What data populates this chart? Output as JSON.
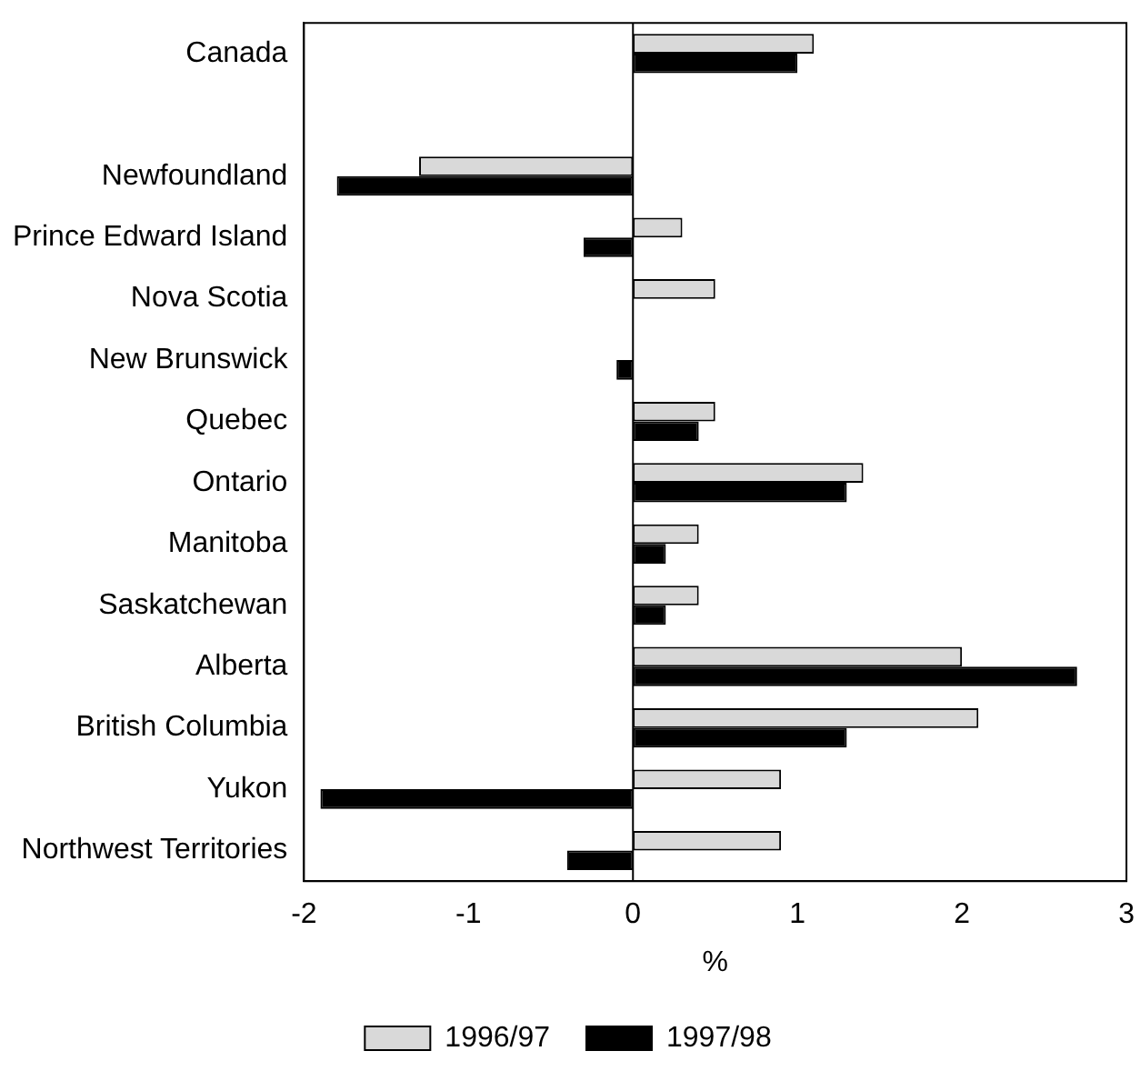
{
  "chart_data": {
    "type": "bar",
    "orientation": "horizontal",
    "xlabel": "%",
    "categories": [
      "Canada",
      null,
      "Newfoundland",
      "Prince Edward Island",
      "Nova Scotia",
      "New Brunswick",
      "Quebec",
      "Ontario",
      "Manitoba",
      "Saskatchewan",
      "Alberta",
      "British Columbia",
      "Yukon",
      "Northwest Territories"
    ],
    "series": [
      {
        "name": "1996/97",
        "color": "#d9d9d9",
        "values": [
          1.1,
          null,
          -1.3,
          0.3,
          0.5,
          0,
          0.5,
          1.4,
          0.4,
          0.4,
          2.0,
          2.1,
          0.9,
          0.9
        ]
      },
      {
        "name": "1997/98",
        "color": "#000000",
        "values": [
          1.0,
          null,
          -1.8,
          -0.3,
          0,
          -0.1,
          0.4,
          1.3,
          0.2,
          0.2,
          2.7,
          1.3,
          -1.9,
          -0.4
        ]
      }
    ],
    "xlim": [
      -2,
      3
    ],
    "xticks": [
      -2,
      -1,
      0,
      1,
      2,
      3
    ],
    "grid": false,
    "legend": "bottom",
    "ref_lines": [
      {
        "axis": "x",
        "value": 0,
        "color": "#000000"
      }
    ]
  }
}
